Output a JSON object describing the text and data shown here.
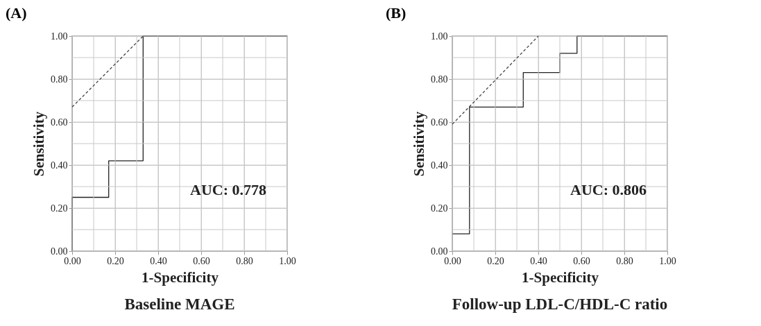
{
  "chart_data": [
    {
      "type": "line",
      "title": "(A)",
      "subtitle": "Baseline MAGE",
      "xlabel": "1-Specificity",
      "ylabel": "Sensitivity",
      "series": [
        {
          "color": "#222222",
          "line_style": "solid",
          "x": [
            0,
            0,
            0.17,
            0.17,
            0.33,
            0.33,
            1
          ],
          "values": [
            0,
            0.25,
            0.25,
            0.42,
            0.42,
            1,
            1
          ]
        },
        {
          "color": "#444444",
          "line_style": "dashed",
          "x": [
            0,
            0.33
          ],
          "values": [
            0.67,
            1
          ]
        }
      ],
      "annotations": [
        "AUC: 0.778"
      ],
      "xlim": [
        0,
        1
      ],
      "ylim": [
        0,
        1
      ],
      "xticks": [
        {
          "value": 0,
          "label": "0.00"
        },
        {
          "value": 0.1,
          "label": null
        },
        {
          "value": 0.2,
          "label": "0.20"
        },
        {
          "value": 0.3,
          "label": null
        },
        {
          "value": 0.4,
          "label": "0.40"
        },
        {
          "value": 0.5,
          "label": null
        },
        {
          "value": 0.6,
          "label": "0.60"
        },
        {
          "value": 0.7,
          "label": null
        },
        {
          "value": 0.8,
          "label": "0.80"
        },
        {
          "value": 0.9,
          "label": null
        },
        {
          "value": 1,
          "label": "1.00"
        }
      ],
      "yticks": [
        {
          "value": 0,
          "label": "0.00"
        },
        {
          "value": 0.1,
          "label": null
        },
        {
          "value": 0.2,
          "label": "0.20"
        },
        {
          "value": 0.3,
          "label": null
        },
        {
          "value": 0.4,
          "label": "0.40"
        },
        {
          "value": 0.5,
          "label": null
        },
        {
          "value": 0.6,
          "label": "0.60"
        },
        {
          "value": 0.7,
          "label": null
        },
        {
          "value": 0.8,
          "label": "0.80"
        },
        {
          "value": 0.9,
          "label": null
        },
        {
          "value": 1,
          "label": "1.00"
        }
      ],
      "grid": true
    },
    {
      "type": "line",
      "title": "(B)",
      "subtitle": "Follow-up LDL-C/HDL-C ratio",
      "xlabel": "1-Specificity",
      "ylabel": "Sensitivity",
      "series": [
        {
          "color": "#222222",
          "line_style": "solid",
          "x": [
            0,
            0.08,
            0.08,
            0.33,
            0.33,
            0.5,
            0.5,
            0.58,
            0.58,
            1
          ],
          "values": [
            0.08,
            0.08,
            0.67,
            0.67,
            0.83,
            0.83,
            0.92,
            0.92,
            1,
            1
          ]
        },
        {
          "color": "#444444",
          "line_style": "dashed",
          "x": [
            0,
            0.4
          ],
          "values": [
            0.59,
            1
          ]
        }
      ],
      "annotations": [
        "AUC: 0.806"
      ],
      "xlim": [
        0,
        1
      ],
      "ylim": [
        0,
        1
      ],
      "xticks": [
        {
          "value": 0,
          "label": "0.00"
        },
        {
          "value": 0.1,
          "label": null
        },
        {
          "value": 0.2,
          "label": "0.20"
        },
        {
          "value": 0.3,
          "label": null
        },
        {
          "value": 0.4,
          "label": "0.40"
        },
        {
          "value": 0.5,
          "label": null
        },
        {
          "value": 0.6,
          "label": "0.60"
        },
        {
          "value": 0.7,
          "label": null
        },
        {
          "value": 0.8,
          "label": "0.80"
        },
        {
          "value": 0.9,
          "label": null
        },
        {
          "value": 1,
          "label": "1.00"
        }
      ],
      "yticks": [
        {
          "value": 0,
          "label": "0.00"
        },
        {
          "value": 0.1,
          "label": null
        },
        {
          "value": 0.2,
          "label": "0.20"
        },
        {
          "value": 0.3,
          "label": null
        },
        {
          "value": 0.4,
          "label": "0.40"
        },
        {
          "value": 0.5,
          "label": null
        },
        {
          "value": 0.6,
          "label": "0.60"
        },
        {
          "value": 0.7,
          "label": null
        },
        {
          "value": 0.8,
          "label": "0.80"
        },
        {
          "value": 0.9,
          "label": null
        },
        {
          "value": 1,
          "label": "1.00"
        }
      ],
      "grid": true
    }
  ]
}
